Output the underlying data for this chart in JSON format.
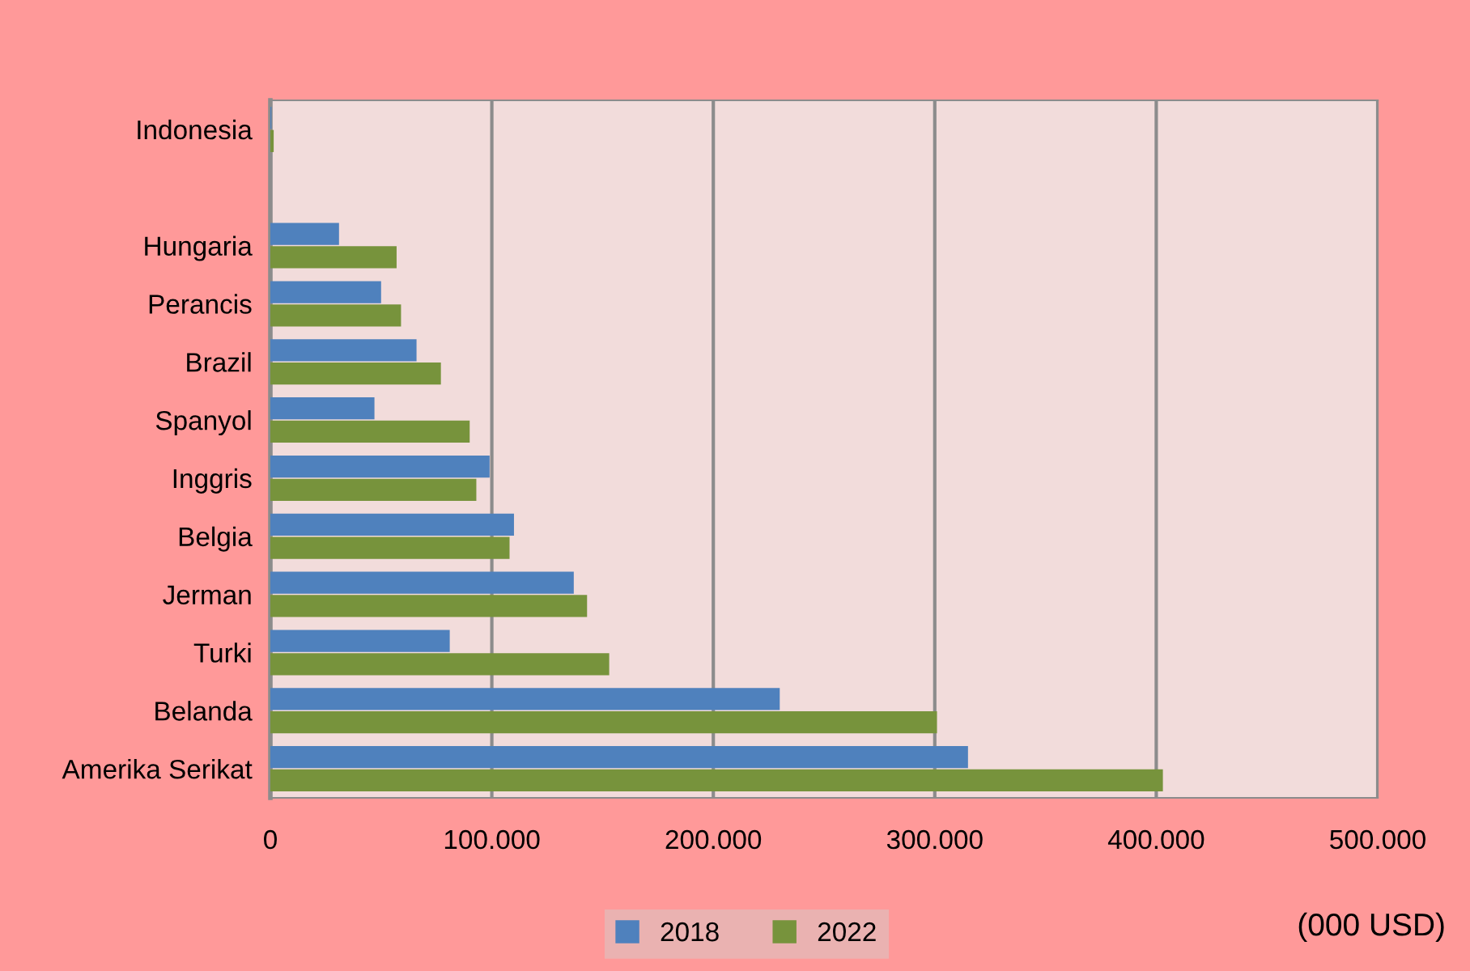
{
  "chart_data": {
    "type": "bar",
    "orientation": "horizontal",
    "categories": [
      "Indonesia",
      null,
      "Hungaria",
      "Perancis",
      "Brazil",
      "Spanyol",
      "Inggris",
      "Belgia",
      "Jerman",
      "Turki",
      "Belanda",
      "Amerika Serikat"
    ],
    "series": [
      {
        "name": "2018",
        "color": "#4f81bd",
        "values": [
          500,
          null,
          31000,
          50000,
          66000,
          47000,
          99000,
          110000,
          137000,
          81000,
          230000,
          315000
        ]
      },
      {
        "name": "2022",
        "color": "#77933c",
        "values": [
          1500,
          null,
          57000,
          59000,
          77000,
          90000,
          93000,
          108000,
          143000,
          153000,
          301000,
          403000
        ]
      }
    ],
    "xlim": [
      0,
      500000
    ],
    "xticks": [
      {
        "value": 0,
        "label": "0"
      },
      {
        "value": 100000,
        "label": "100.000"
      },
      {
        "value": 200000,
        "label": "200.000"
      },
      {
        "value": 300000,
        "label": "300.000"
      },
      {
        "value": 400000,
        "label": "400.000"
      },
      {
        "value": 500000,
        "label": "500.000"
      }
    ],
    "grid": "x",
    "legend": "bottom",
    "annotations": [
      "(000 USD)"
    ]
  }
}
